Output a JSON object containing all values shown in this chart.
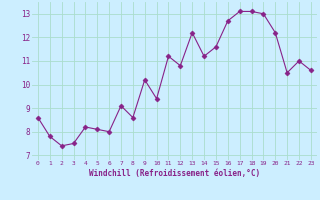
{
  "x": [
    0,
    1,
    2,
    3,
    4,
    5,
    6,
    7,
    8,
    9,
    10,
    11,
    12,
    13,
    14,
    15,
    16,
    17,
    18,
    19,
    20,
    21,
    22,
    23
  ],
  "y": [
    8.6,
    7.8,
    7.4,
    7.5,
    8.2,
    8.1,
    8.0,
    9.1,
    8.6,
    10.2,
    9.4,
    11.2,
    10.8,
    12.2,
    11.2,
    11.6,
    12.7,
    13.1,
    13.1,
    13.0,
    12.2,
    10.5,
    11.0,
    10.6
  ],
  "line_color": "#882288",
  "marker": "D",
  "marker_size": 2.5,
  "bg_color": "#cceeff",
  "grid_color": "#aaddcc",
  "xlabel": "Windchill (Refroidissement éolien,°C)",
  "xlabel_color": "#882288",
  "tick_color": "#882288",
  "xlim": [
    -0.5,
    23.5
  ],
  "ylim": [
    6.8,
    13.5
  ],
  "yticks": [
    7,
    8,
    9,
    10,
    11,
    12,
    13
  ],
  "xticks": [
    0,
    1,
    2,
    3,
    4,
    5,
    6,
    7,
    8,
    9,
    10,
    11,
    12,
    13,
    14,
    15,
    16,
    17,
    18,
    19,
    20,
    21,
    22,
    23
  ]
}
